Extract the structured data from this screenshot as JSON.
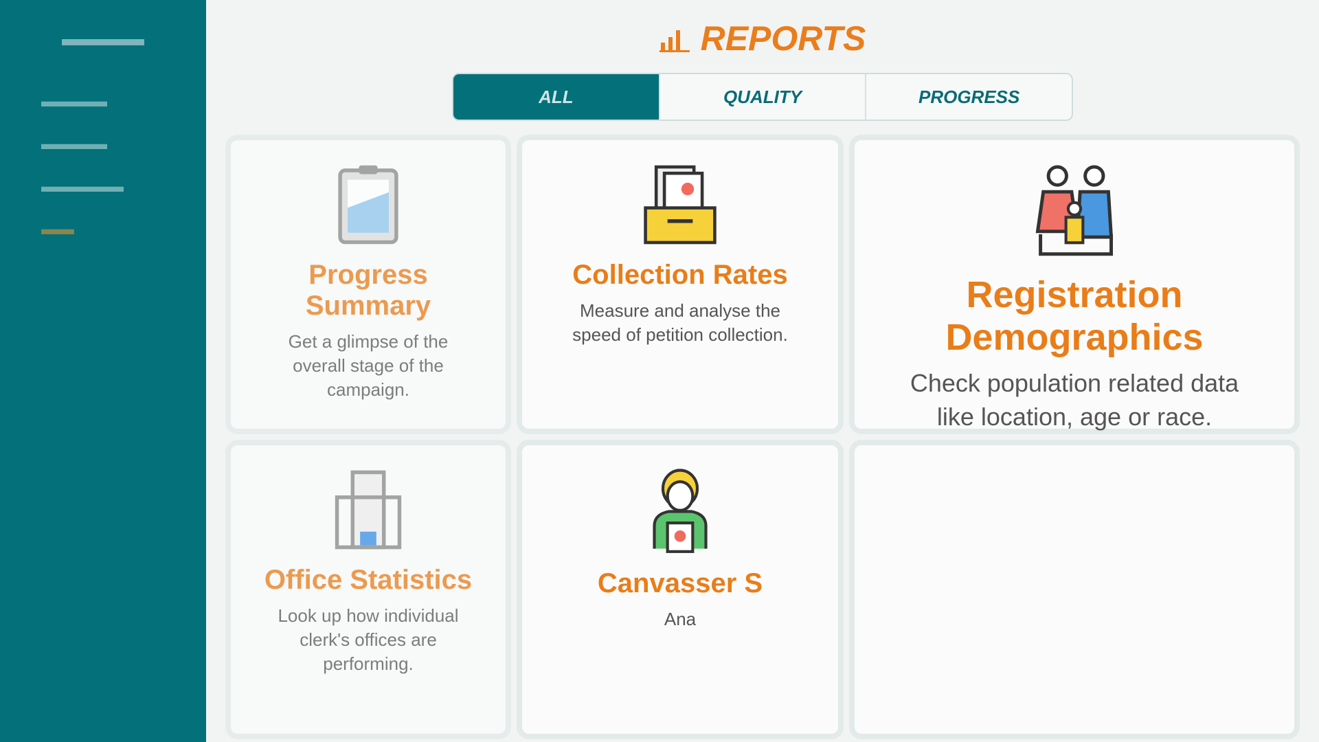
{
  "sidebar": {
    "logo": "",
    "items": [
      {
        "label": "",
        "active": false
      },
      {
        "label": "",
        "active": false
      },
      {
        "label": "",
        "active": false
      },
      {
        "label": "",
        "active": true
      }
    ]
  },
  "header": {
    "title": "REPORTS",
    "icon": "bar-chart-icon"
  },
  "tabs": [
    {
      "label": "ALL",
      "active": true
    },
    {
      "label": "QUALITY",
      "active": false
    },
    {
      "label": "PROGRESS",
      "active": false
    }
  ],
  "cards": [
    {
      "title": "Progress Summary",
      "description": "Get a glimpse of the overall stage of the campaign.",
      "icon": "clipboard-chart-icon"
    },
    {
      "title": "Collection Rates",
      "description": "Measure and analyse the speed of petition collection.",
      "icon": "file-drawer-icon"
    },
    {
      "title": "Registration Demographics",
      "description": "Check population related data like location, age or race.",
      "icon": "family-icon"
    },
    {
      "title": "Office Statistics",
      "description": "Look up how individual clerk's offices are performing.",
      "icon": "office-building-icon"
    },
    {
      "title": "Canvasser S",
      "description": "Ana",
      "icon": "canvasser-badge-icon"
    }
  ],
  "colors": {
    "teal": "#03707a",
    "orange": "#ea7d1c",
    "background": "#f2f4f4"
  }
}
